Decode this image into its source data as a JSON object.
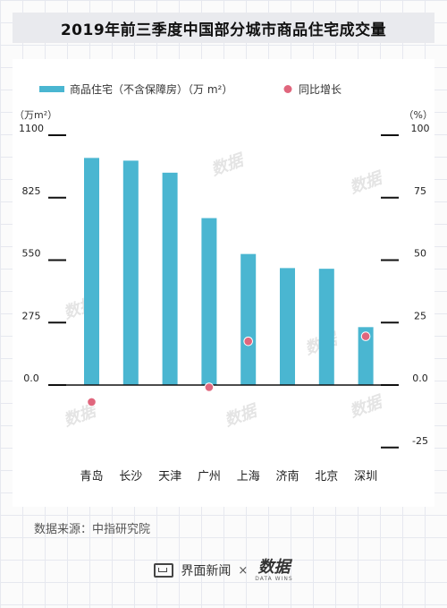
{
  "title": "2019年前三季度中国部分城市商品住宅成交量",
  "source_text": "数据来源：中指研究院",
  "footer": {
    "brand1": "界面新闻",
    "separator": "×",
    "brand2": "数据",
    "brand2_sub": "DATA WINS"
  },
  "watermark_text": "数据",
  "chart_data": {
    "type": "bar",
    "categories": [
      "青岛",
      "长沙",
      "天津",
      "广州",
      "上海",
      "济南",
      "北京",
      "深圳"
    ],
    "series": [
      {
        "name": "商品住宅（不含保障房）（万 m²）",
        "type": "bar",
        "axis": "left",
        "values": [
          1000,
          988,
          935,
          735,
          577,
          515,
          512,
          255
        ],
        "color": "#4ab6d1"
      },
      {
        "name": "同比增长",
        "type": "scatter",
        "axis": "right",
        "values": [
          -6.8,
          null,
          null,
          -0.9,
          17.5,
          null,
          null,
          19.5
        ],
        "color": "#e0667d"
      }
    ],
    "left_axis": {
      "label": "（万m²）",
      "ticks": [
        "1100",
        "825",
        "550",
        "275",
        "0.0"
      ],
      "tick_values": [
        1100,
        825,
        550,
        275,
        0
      ],
      "range": [
        -275,
        1100
      ]
    },
    "right_axis": {
      "label": "（%）",
      "ticks": [
        "100",
        "75",
        "50",
        "25",
        "0.0",
        "-25"
      ],
      "tick_values": [
        100,
        75,
        50,
        25,
        0,
        -25
      ],
      "range": [
        -25,
        100
      ]
    },
    "legend_position": "top",
    "grid": false
  }
}
